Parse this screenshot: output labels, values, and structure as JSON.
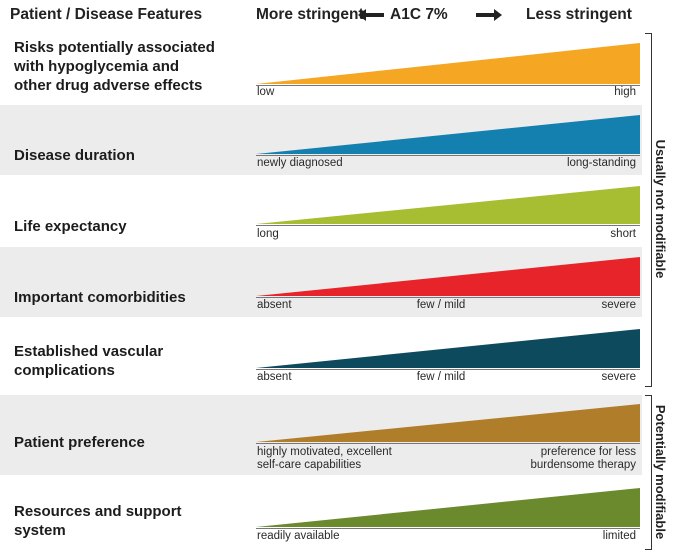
{
  "header": {
    "left_title": "Patient / Disease Features",
    "more_stringent": "More stringent",
    "a1c": "A1C 7%",
    "less_stringent": "Less stringent"
  },
  "rows": [
    {
      "label_lines": [
        "Risks potentially associated",
        "with hypoglycemia and",
        "other drug adverse effects"
      ],
      "color": "#f5a623",
      "scale": {
        "left": "low",
        "middle": "",
        "right": "high"
      }
    },
    {
      "label_lines": [
        "Disease duration"
      ],
      "color": "#1480b0",
      "scale": {
        "left": "newly diagnosed",
        "middle": "",
        "right": "long-standing"
      }
    },
    {
      "label_lines": [
        "Life expectancy"
      ],
      "color": "#a7bd32",
      "scale": {
        "left": "long",
        "middle": "",
        "right": "short"
      }
    },
    {
      "label_lines": [
        "Important comorbidities"
      ],
      "color": "#e8242b",
      "scale": {
        "left": "absent",
        "middle": "few / mild",
        "right": "severe"
      }
    },
    {
      "label_lines": [
        "Established vascular",
        "complications"
      ],
      "color": "#0e4a5e",
      "scale": {
        "left": "absent",
        "middle": "few / mild",
        "right": "severe"
      }
    },
    {
      "label_lines": [
        "Patient preference"
      ],
      "color": "#b07e2a",
      "scale": {
        "left": "highly motivated, excellent\nself-care capabilities",
        "middle": "",
        "right": "preference for less\nburdensome therapy"
      }
    },
    {
      "label_lines": [
        "Resources and support",
        "system"
      ],
      "color": "#6b8a2e",
      "scale": {
        "left": "readily available",
        "middle": "",
        "right": "limited"
      }
    }
  ],
  "side_labels": {
    "group1": "Usually not modifiable",
    "group2": "Potentially modifiable"
  }
}
